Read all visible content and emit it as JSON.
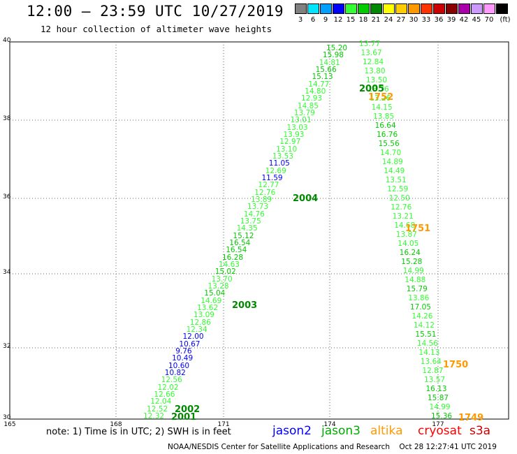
{
  "header": {
    "title": "12:00 – 23:59 UTC 10/27/2019",
    "subtitle": "12 hour collection of altimeter wave heights"
  },
  "color_scale": {
    "unit": "(ft)",
    "bins": [
      {
        "label": "3",
        "color": "#808080"
      },
      {
        "label": "6",
        "color": "#00e5ff"
      },
      {
        "label": "9",
        "color": "#00a0ff"
      },
      {
        "label": "12",
        "color": "#0000ff"
      },
      {
        "label": "15",
        "color": "#33ff33"
      },
      {
        "label": "18",
        "color": "#00cc00"
      },
      {
        "label": "21",
        "color": "#008800"
      },
      {
        "label": "24",
        "color": "#ffff00"
      },
      {
        "label": "27",
        "color": "#ffcc00"
      },
      {
        "label": "30",
        "color": "#ff9900"
      },
      {
        "label": "33",
        "color": "#ff3300"
      },
      {
        "label": "36",
        "color": "#cc0000"
      },
      {
        "label": "39",
        "color": "#880000"
      },
      {
        "label": "42",
        "color": "#aa00aa"
      },
      {
        "label": "45",
        "color": "#cc99ff"
      },
      {
        "label": "70",
        "color": "#ff99ff"
      },
      {
        "label": "",
        "color": "#000000"
      }
    ]
  },
  "axes": {
    "lat_labels": [
      "40",
      "38",
      "36",
      "34",
      "32",
      "30"
    ],
    "lon_labels": [
      "165",
      "168",
      "171",
      "174",
      "177"
    ]
  },
  "tracks": {
    "left": [
      {
        "v": "15.20",
        "c": "#00cc00"
      },
      {
        "v": "15.98",
        "c": "#00cc00"
      },
      {
        "v": "14.81",
        "c": "#33ff33"
      },
      {
        "v": "15.66",
        "c": "#00cc00"
      },
      {
        "v": "15.13",
        "c": "#00cc00"
      },
      {
        "v": "14.77",
        "c": "#33ff33"
      },
      {
        "v": "14.80",
        "c": "#33ff33"
      },
      {
        "v": "12.93",
        "c": "#33ff33"
      },
      {
        "v": "14.85",
        "c": "#33ff33"
      },
      {
        "v": "13.79",
        "c": "#33ff33"
      },
      {
        "v": "13.01",
        "c": "#33ff33"
      },
      {
        "v": "13.03",
        "c": "#33ff33"
      },
      {
        "v": "13.93",
        "c": "#33ff33"
      },
      {
        "v": "12.97",
        "c": "#33ff33"
      },
      {
        "v": "13.10",
        "c": "#33ff33"
      },
      {
        "v": "13.53",
        "c": "#33ff33"
      },
      {
        "v": "11.05",
        "c": "#0000ff"
      },
      {
        "v": "12.69",
        "c": "#33ff33"
      },
      {
        "v": "11.59",
        "c": "#0000ff"
      },
      {
        "v": "12.77",
        "c": "#33ff33"
      },
      {
        "v": "12.76",
        "c": "#33ff33"
      },
      {
        "v": "13.89",
        "c": "#33ff33"
      },
      {
        "v": "13.73",
        "c": "#33ff33"
      },
      {
        "v": "14.76",
        "c": "#33ff33"
      },
      {
        "v": "13.75",
        "c": "#33ff33"
      },
      {
        "v": "14.35",
        "c": "#33ff33"
      },
      {
        "v": "15.12",
        "c": "#00cc00"
      },
      {
        "v": "16.54",
        "c": "#00cc00"
      },
      {
        "v": "16.54",
        "c": "#00cc00"
      },
      {
        "v": "16.28",
        "c": "#00cc00"
      },
      {
        "v": "14.63",
        "c": "#33ff33"
      },
      {
        "v": "15.02",
        "c": "#00cc00"
      },
      {
        "v": "13.70",
        "c": "#33ff33"
      },
      {
        "v": "13.28",
        "c": "#33ff33"
      },
      {
        "v": "15.04",
        "c": "#00cc00"
      },
      {
        "v": "14.69",
        "c": "#33ff33"
      },
      {
        "v": "13.62",
        "c": "#33ff33"
      },
      {
        "v": "13.09",
        "c": "#33ff33"
      },
      {
        "v": "12.86",
        "c": "#33ff33"
      },
      {
        "v": "12.34",
        "c": "#33ff33"
      },
      {
        "v": "12.00",
        "c": "#0000ff"
      },
      {
        "v": "10.67",
        "c": "#0000ff"
      },
      {
        "v": "9.76",
        "c": "#0000ff"
      },
      {
        "v": "10.49",
        "c": "#0000ff"
      },
      {
        "v": "10.60",
        "c": "#0000ff"
      },
      {
        "v": "10.82",
        "c": "#0000ff"
      },
      {
        "v": "12.56",
        "c": "#33ff33"
      },
      {
        "v": "12.02",
        "c": "#33ff33"
      },
      {
        "v": "12.66",
        "c": "#33ff33"
      },
      {
        "v": "12.04",
        "c": "#33ff33"
      },
      {
        "v": "12.52",
        "c": "#33ff33"
      },
      {
        "v": "12.32",
        "c": "#33ff33"
      }
    ],
    "right": [
      {
        "v": "13.77",
        "c": "#33ff33"
      },
      {
        "v": "13.67",
        "c": "#33ff33"
      },
      {
        "v": "12.84",
        "c": "#33ff33"
      },
      {
        "v": "13.80",
        "c": "#33ff33"
      },
      {
        "v": "13.50",
        "c": "#33ff33"
      },
      {
        "v": "13.76",
        "c": "#33ff33"
      },
      {
        "v": "13.26",
        "c": "#33ff33"
      },
      {
        "v": "14.15",
        "c": "#33ff33"
      },
      {
        "v": "13.85",
        "c": "#33ff33"
      },
      {
        "v": "16.64",
        "c": "#00cc00"
      },
      {
        "v": "16.76",
        "c": "#00cc00"
      },
      {
        "v": "15.56",
        "c": "#00cc00"
      },
      {
        "v": "14.70",
        "c": "#33ff33"
      },
      {
        "v": "14.89",
        "c": "#33ff33"
      },
      {
        "v": "14.49",
        "c": "#33ff33"
      },
      {
        "v": "13.51",
        "c": "#33ff33"
      },
      {
        "v": "12.59",
        "c": "#33ff33"
      },
      {
        "v": "12.50",
        "c": "#33ff33"
      },
      {
        "v": "12.76",
        "c": "#33ff33"
      },
      {
        "v": "13.21",
        "c": "#33ff33"
      },
      {
        "v": "14.68",
        "c": "#33ff33"
      },
      {
        "v": "13.87",
        "c": "#33ff33"
      },
      {
        "v": "14.05",
        "c": "#33ff33"
      },
      {
        "v": "16.24",
        "c": "#00cc00"
      },
      {
        "v": "15.28",
        "c": "#00cc00"
      },
      {
        "v": "14.99",
        "c": "#33ff33"
      },
      {
        "v": "14.88",
        "c": "#33ff33"
      },
      {
        "v": "15.79",
        "c": "#00cc00"
      },
      {
        "v": "13.86",
        "c": "#33ff33"
      },
      {
        "v": "17.05",
        "c": "#00cc00"
      },
      {
        "v": "14.26",
        "c": "#33ff33"
      },
      {
        "v": "14.12",
        "c": "#33ff33"
      },
      {
        "v": "15.51",
        "c": "#00cc00"
      },
      {
        "v": "14.56",
        "c": "#33ff33"
      },
      {
        "v": "14.13",
        "c": "#33ff33"
      },
      {
        "v": "13.64",
        "c": "#33ff33"
      },
      {
        "v": "12.87",
        "c": "#33ff33"
      },
      {
        "v": "13.57",
        "c": "#33ff33"
      },
      {
        "v": "16.13",
        "c": "#00cc00"
      },
      {
        "v": "15.87",
        "c": "#00cc00"
      },
      {
        "v": "14.99",
        "c": "#33ff33"
      },
      {
        "v": "15.36",
        "c": "#00cc00"
      }
    ]
  },
  "time_labels": [
    {
      "text": "2005",
      "color": "#008800"
    },
    {
      "text": "1752",
      "color": "#ff9900"
    },
    {
      "text": "2004",
      "color": "#008800"
    },
    {
      "text": "1751",
      "color": "#ff9900"
    },
    {
      "text": "2003",
      "color": "#008800"
    },
    {
      "text": "1750",
      "color": "#ff9900"
    },
    {
      "text": "2002",
      "color": "#008800"
    },
    {
      "text": "2001",
      "color": "#008800"
    },
    {
      "text": "1749",
      "color": "#ff9900"
    }
  ],
  "note": "note: 1) Time is in UTC; 2) SWH is in feet",
  "legend": [
    {
      "text": "jason2",
      "color": "#0000ff"
    },
    {
      "text": "jason3",
      "color": "#00aa00"
    },
    {
      "text": "altika",
      "color": "#ff9900"
    },
    {
      "text": "cryosat",
      "color": "#ff0000"
    },
    {
      "text": "s3a",
      "color": "#cc0000"
    }
  ],
  "footer": "NOAA/NESDIS Center for Satellite Applications and Research    Oct 28 12:27:41 UTC 2019"
}
